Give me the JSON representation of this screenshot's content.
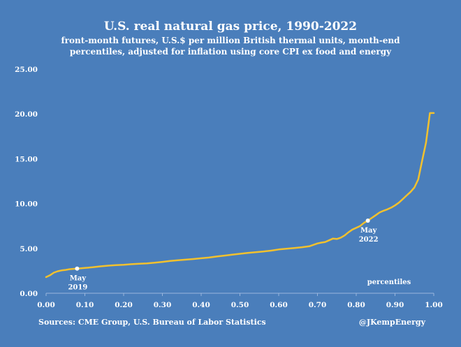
{
  "chart_data": {
    "type": "line",
    "title": "U.S. real natural gas price, 1990-2022",
    "subtitle_line1": "front-month futures, U.S.$ per million British thermal units, month-end",
    "subtitle_line2": "percentiles, adjusted for inflation using core CPI ex food and energy",
    "xlabel": "percentiles",
    "ylabel": "",
    "xlim": [
      0,
      1
    ],
    "ylim": [
      0,
      25
    ],
    "x_ticks": [
      "0.00",
      "0.10",
      "0.20",
      "0.30",
      "0.40",
      "0.50",
      "0.60",
      "0.70",
      "0.80",
      "0.90",
      "1.00"
    ],
    "y_ticks": [
      "0.00",
      "5.00",
      "10.00",
      "15.00",
      "20.00",
      "25.00"
    ],
    "grid": false,
    "series": [
      {
        "name": "real natural gas price",
        "color": "#f2c12e",
        "x": [
          0.0,
          0.01,
          0.02,
          0.03,
          0.04,
          0.05,
          0.06,
          0.07,
          0.08,
          0.1,
          0.12,
          0.14,
          0.16,
          0.18,
          0.2,
          0.22,
          0.24,
          0.26,
          0.28,
          0.3,
          0.32,
          0.34,
          0.36,
          0.38,
          0.4,
          0.42,
          0.44,
          0.46,
          0.48,
          0.5,
          0.52,
          0.54,
          0.56,
          0.58,
          0.6,
          0.62,
          0.64,
          0.66,
          0.68,
          0.7,
          0.71,
          0.72,
          0.73,
          0.74,
          0.75,
          0.76,
          0.77,
          0.78,
          0.79,
          0.8,
          0.81,
          0.82,
          0.83,
          0.84,
          0.85,
          0.86,
          0.87,
          0.88,
          0.89,
          0.9,
          0.91,
          0.92,
          0.93,
          0.94,
          0.95,
          0.96,
          0.97,
          0.98,
          0.99,
          1.0
        ],
        "values": [
          1.8,
          2.0,
          2.3,
          2.45,
          2.55,
          2.6,
          2.68,
          2.72,
          2.75,
          2.82,
          2.9,
          3.0,
          3.08,
          3.14,
          3.18,
          3.24,
          3.29,
          3.33,
          3.4,
          3.5,
          3.6,
          3.68,
          3.75,
          3.82,
          3.9,
          3.98,
          4.1,
          4.2,
          4.3,
          4.4,
          4.5,
          4.58,
          4.66,
          4.75,
          4.88,
          4.97,
          5.05,
          5.13,
          5.25,
          5.55,
          5.65,
          5.72,
          5.9,
          6.1,
          6.05,
          6.2,
          6.45,
          6.8,
          7.1,
          7.3,
          7.5,
          7.85,
          8.1,
          8.4,
          8.7,
          9.0,
          9.2,
          9.35,
          9.55,
          9.8,
          10.1,
          10.5,
          10.9,
          11.3,
          11.8,
          12.7,
          14.8,
          16.8,
          20.1,
          20.1
        ]
      }
    ],
    "annotations": [
      {
        "x": 0.08,
        "y": 2.75,
        "line1": "May",
        "line2": "2019"
      },
      {
        "x": 0.83,
        "y": 8.1,
        "line1": "May",
        "line2": "2022"
      }
    ],
    "source": "Sources: CME Group, U.S. Bureau of Labor Statistics",
    "credit": "@JKempEnergy"
  }
}
